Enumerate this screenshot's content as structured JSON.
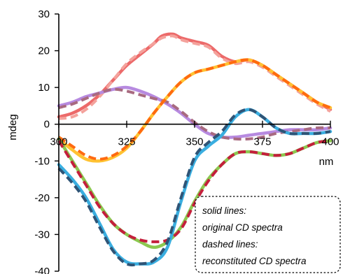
{
  "chart_data": {
    "type": "line",
    "ylabel": "mdeg",
    "xlabel": "nm",
    "xlim": [
      300,
      400
    ],
    "ylim": [
      -40,
      30
    ],
    "x_ticks": [
      "300",
      "325",
      "350",
      "375",
      "400"
    ],
    "y_ticks": [
      "30",
      "20",
      "10",
      "0",
      "-10",
      "-20",
      "-30",
      "-40"
    ],
    "x_tick_values": [
      300,
      325,
      350,
      375,
      400
    ],
    "y_tick_values": [
      30,
      20,
      10,
      0,
      -10,
      -20,
      -30,
      -40
    ],
    "grid": false,
    "legend_position": "bottom-right",
    "annotation_lines": [
      "solid lines:",
      "original  CD spectra",
      "dashed lines:",
      "reconstituted CD spectra"
    ],
    "series": [
      {
        "color": "#ec6a6a",
        "style": "solid",
        "x": [
          300,
          305,
          310,
          315,
          320,
          325,
          330,
          335,
          338,
          342,
          345,
          350,
          355,
          360,
          365,
          370,
          375,
          380,
          385,
          390,
          395,
          400
        ],
        "y": [
          2,
          3,
          5,
          8,
          12,
          16,
          19,
          22,
          24,
          24.5,
          23.5,
          22.5,
          21.5,
          18.5,
          17,
          17.5,
          16,
          13.5,
          11,
          8.5,
          6,
          4
        ]
      },
      {
        "color": "#f4a29c",
        "style": "dashed",
        "x": [
          300,
          305,
          310,
          315,
          320,
          325,
          330,
          335,
          338,
          342,
          345,
          350,
          355,
          360,
          365,
          370,
          375,
          380,
          385,
          390,
          395,
          400
        ],
        "y": [
          1.5,
          2,
          4,
          7.5,
          12,
          16.5,
          19.5,
          22,
          23.5,
          24,
          23,
          22,
          21,
          18,
          16.5,
          17,
          15.5,
          13,
          10.5,
          8,
          5.5,
          3.5
        ]
      },
      {
        "color": "#b78ae0",
        "style": "solid",
        "x": [
          300,
          305,
          310,
          315,
          320,
          325,
          330,
          335,
          340,
          345,
          350,
          355,
          360,
          365,
          370,
          375,
          380,
          385,
          390,
          395,
          400
        ],
        "y": [
          5,
          6,
          7.5,
          8.5,
          9.5,
          10,
          9,
          7.5,
          5.5,
          3,
          0,
          -2.5,
          -3.5,
          -3.5,
          -3,
          -2.5,
          -2,
          -1.5,
          -1.5,
          -1.5,
          -1
        ]
      },
      {
        "color": "#a86a80",
        "style": "dashed",
        "x": [
          300,
          305,
          310,
          315,
          320,
          325,
          330,
          335,
          340,
          345,
          350,
          355,
          360,
          365,
          370,
          375,
          380,
          385,
          390,
          395,
          400
        ],
        "y": [
          4.5,
          5.5,
          7,
          8.5,
          9.5,
          9,
          8,
          7,
          6,
          3.5,
          0.5,
          -2,
          -3.5,
          -4,
          -4,
          -3.5,
          -2.5,
          -2,
          -1.5,
          -1,
          -1
        ]
      },
      {
        "color": "#ffc232",
        "style": "solid",
        "x": [
          300,
          305,
          310,
          315,
          320,
          325,
          330,
          335,
          340,
          345,
          350,
          355,
          360,
          365,
          370,
          375,
          380,
          385,
          390,
          395,
          400
        ],
        "y": [
          -4,
          -7,
          -9.5,
          -10,
          -9,
          -6.5,
          -2,
          3,
          7.5,
          11.5,
          14,
          15,
          16,
          17,
          17.5,
          16,
          13.5,
          11,
          8.5,
          6,
          4.5
        ]
      },
      {
        "color": "#ff6a10",
        "style": "dashed",
        "x": [
          300,
          305,
          310,
          315,
          320,
          325,
          330,
          335,
          340,
          345,
          350,
          355,
          360,
          365,
          370,
          375,
          380,
          385,
          390,
          395,
          400
        ],
        "y": [
          -3.5,
          -6,
          -8.5,
          -9.5,
          -8.5,
          -6,
          -2,
          3,
          7.5,
          11.5,
          14,
          15,
          16,
          17,
          17.5,
          16,
          13.5,
          11,
          8.5,
          6,
          4.5
        ]
      },
      {
        "color": "#8cc850",
        "style": "solid",
        "x": [
          300,
          305,
          310,
          315,
          320,
          325,
          330,
          335,
          340,
          345,
          350,
          355,
          360,
          365,
          370,
          375,
          380,
          385,
          390,
          395,
          400
        ],
        "y": [
          -4,
          -10,
          -16,
          -22,
          -27,
          -30,
          -32,
          -33.5,
          -32,
          -28,
          -21,
          -15,
          -11,
          -8,
          -7.5,
          -8,
          -8.5,
          -8,
          -6.5,
          -5,
          -4.5
        ]
      },
      {
        "color": "#c41f3c",
        "style": "dashed",
        "x": [
          300,
          305,
          310,
          315,
          320,
          325,
          330,
          335,
          340,
          345,
          350,
          355,
          360,
          365,
          370,
          375,
          380,
          385,
          390,
          395,
          400
        ],
        "y": [
          -4.5,
          -10.5,
          -16.5,
          -22.5,
          -27,
          -30,
          -31.5,
          -32,
          -31.5,
          -28.5,
          -21.5,
          -15.5,
          -11,
          -8,
          -7.5,
          -8,
          -8.5,
          -8,
          -6.5,
          -5,
          -4.5
        ]
      },
      {
        "color": "#3aaee0",
        "style": "solid",
        "x": [
          300,
          305,
          310,
          315,
          320,
          325,
          330,
          335,
          340,
          345,
          350,
          355,
          360,
          365,
          370,
          375,
          380,
          385,
          390,
          395,
          400
        ],
        "y": [
          -11,
          -15,
          -20,
          -27,
          -34,
          -37.5,
          -38,
          -37.5,
          -33.5,
          -21,
          -10,
          -6,
          -3,
          2,
          4,
          2,
          -1,
          -2.5,
          -2.5,
          -2.5,
          -2
        ]
      },
      {
        "color": "#2f5476",
        "style": "dashed",
        "x": [
          300,
          305,
          310,
          315,
          320,
          325,
          330,
          335,
          340,
          345,
          350,
          355,
          360,
          365,
          370,
          375,
          380,
          385,
          390,
          395,
          400
        ],
        "y": [
          -12,
          -16,
          -21,
          -28,
          -34.5,
          -38,
          -38,
          -37,
          -32,
          -20,
          -9,
          -5,
          -2,
          2.5,
          4,
          2,
          -1,
          -2.5,
          -2.5,
          -2.5,
          -2
        ]
      }
    ]
  }
}
